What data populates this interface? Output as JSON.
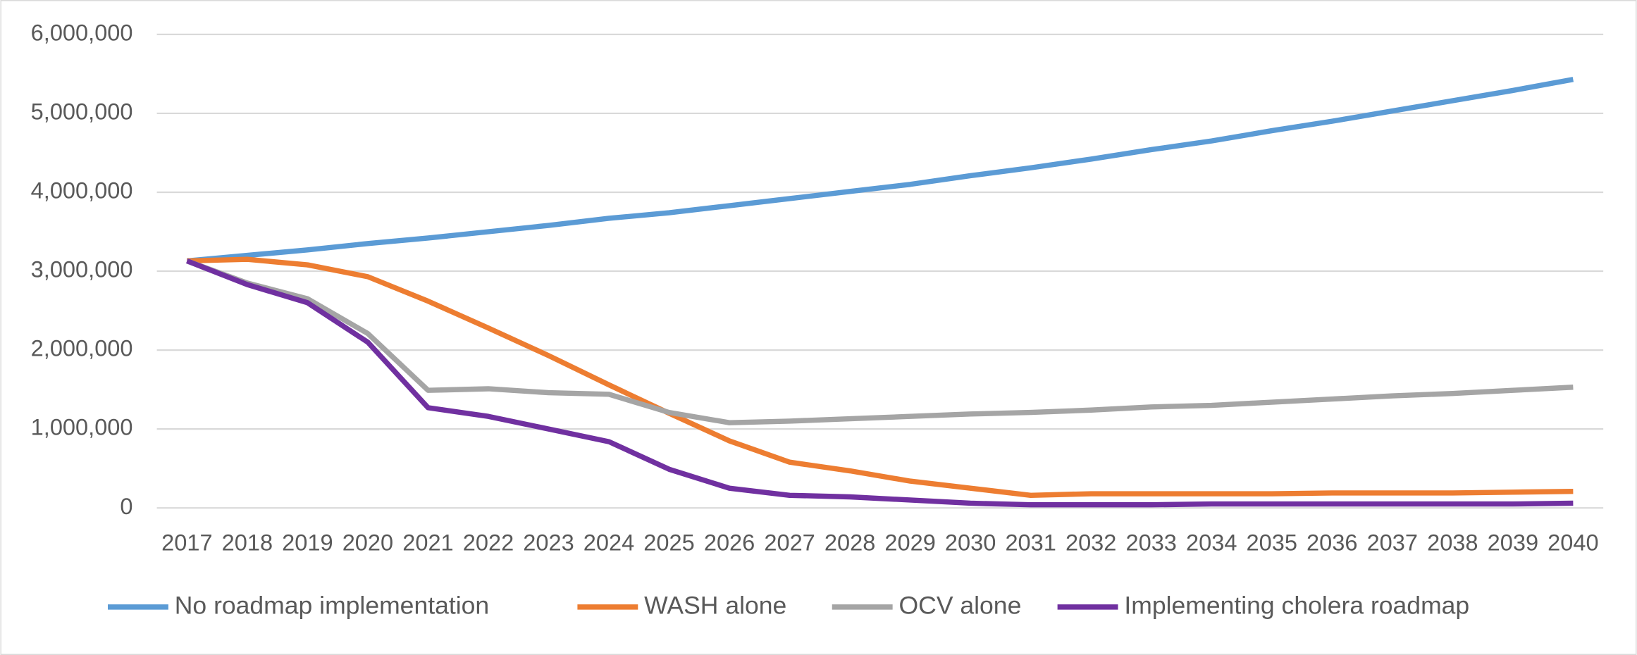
{
  "chart_data": {
    "type": "line",
    "categories": [
      "2017",
      "2018",
      "2019",
      "2020",
      "2021",
      "2022",
      "2023",
      "2024",
      "2025",
      "2026",
      "2027",
      "2028",
      "2029",
      "2030",
      "2031",
      "2032",
      "2033",
      "2034",
      "2035",
      "2036",
      "2037",
      "2038",
      "2039",
      "2040"
    ],
    "series": [
      {
        "name": "No roadmap implementation",
        "color": "#5b9bd5",
        "values": [
          3130000,
          3200000,
          3270000,
          3350000,
          3420000,
          3500000,
          3580000,
          3670000,
          3740000,
          3830000,
          3920000,
          4010000,
          4100000,
          4210000,
          4310000,
          4420000,
          4540000,
          4650000,
          4780000,
          4900000,
          5030000,
          5160000,
          5290000,
          5430000
        ]
      },
      {
        "name": "WASH alone",
        "color": "#ed7d31",
        "values": [
          3130000,
          3150000,
          3080000,
          2930000,
          2620000,
          2280000,
          1930000,
          1560000,
          1200000,
          850000,
          580000,
          470000,
          340000,
          250000,
          160000,
          180000,
          180000,
          180000,
          180000,
          190000,
          190000,
          190000,
          200000,
          210000
        ]
      },
      {
        "name": "OCV alone",
        "color": "#a5a5a5",
        "values": [
          3130000,
          2850000,
          2650000,
          2210000,
          1490000,
          1510000,
          1460000,
          1440000,
          1210000,
          1080000,
          1100000,
          1130000,
          1160000,
          1190000,
          1210000,
          1240000,
          1280000,
          1300000,
          1340000,
          1380000,
          1420000,
          1450000,
          1490000,
          1530000
        ]
      },
      {
        "name": "Implementing cholera roadmap",
        "color": "#7030a0",
        "values": [
          3130000,
          2830000,
          2600000,
          2100000,
          1270000,
          1160000,
          1000000,
          840000,
          490000,
          250000,
          160000,
          140000,
          100000,
          60000,
          40000,
          40000,
          40000,
          50000,
          50000,
          50000,
          50000,
          50000,
          50000,
          60000
        ]
      }
    ],
    "ylim": [
      0,
      6000000
    ],
    "yticks": [
      0,
      {
        "value": 1000000,
        "label": "1,000,000"
      },
      {
        "value": 2000000,
        "label": "2,000,000"
      },
      {
        "value": 3000000,
        "label": "3,000,000"
      },
      {
        "value": 4000000,
        "label": "4,000,000"
      },
      {
        "value": 5000000,
        "label": "5,000,000"
      },
      {
        "value": 6000000,
        "label": "6,000,000"
      }
    ],
    "grid": true,
    "legend": "bottom"
  }
}
